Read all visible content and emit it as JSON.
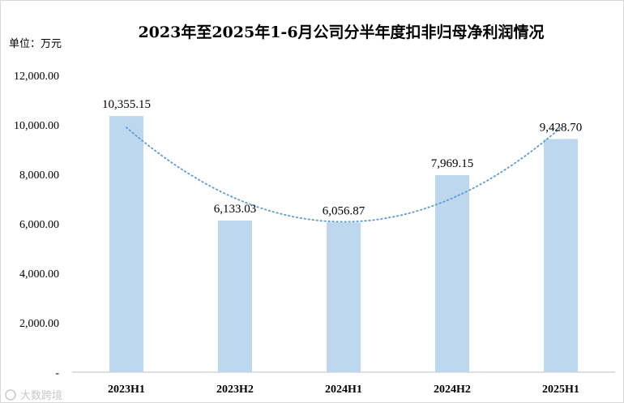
{
  "chart_data": {
    "type": "bar",
    "title": "2023年至2025年1-6月公司分半年度扣非归母净利润情况",
    "unit_label": "单位：万元",
    "categories": [
      "2023H1",
      "2023H2",
      "2024H1",
      "2024H2",
      "2025H1"
    ],
    "values": [
      10355.15,
      6133.03,
      6056.87,
      7969.15,
      9428.7
    ],
    "data_labels": [
      "10,355.15",
      "6,133.03",
      "6,056.87",
      "7,969.15",
      "9,428.70"
    ],
    "ylim": [
      0,
      12000
    ],
    "yticks": [
      0,
      2000,
      4000,
      6000,
      8000,
      10000,
      12000
    ],
    "ytick_labels": [
      "-",
      "2,000.00",
      "4,000.00",
      "6,000.00",
      "8,000.00",
      "10,000.00",
      "12,000.00"
    ],
    "trendline": "polynomial",
    "grid": false,
    "bar_color": "#bdd7ee",
    "trend_color": "#5b9bd5"
  },
  "watermark": "大数跨境"
}
